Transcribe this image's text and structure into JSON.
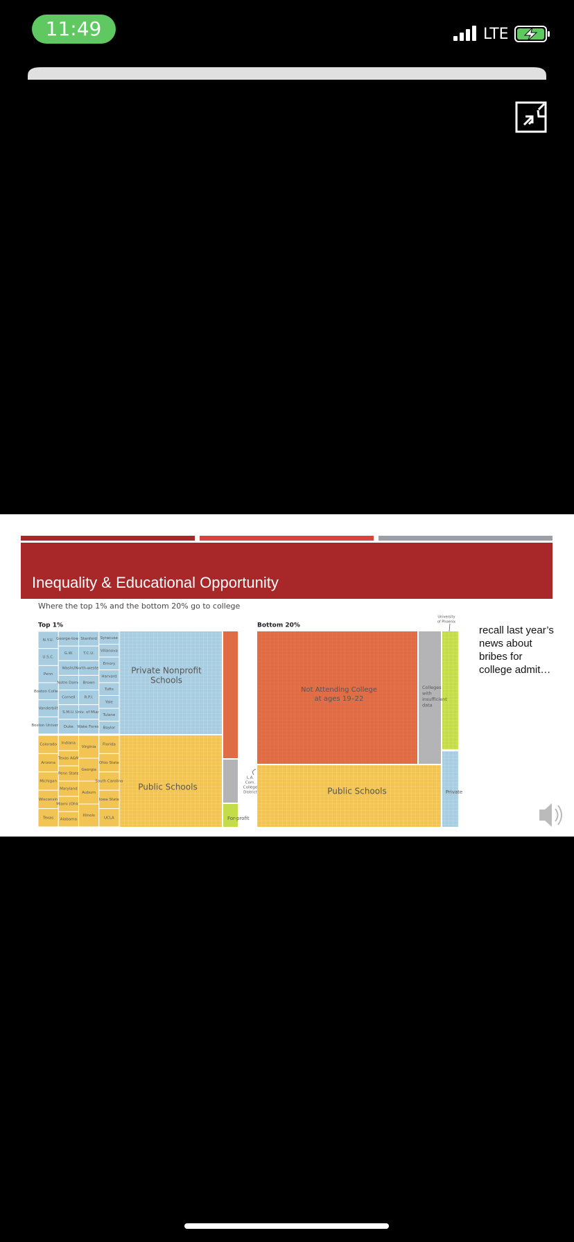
{
  "status": {
    "time": "11:49",
    "network": "LTE"
  },
  "slide": {
    "title": "Inequality & Educational Opportunity",
    "subtitle": "Where the top 1% and the bottom 20% go to college",
    "top_label": "Top 1%",
    "bottom_label": "Bottom 20%",
    "top_private_label": [
      "Private Nonprofit",
      "Schools"
    ],
    "top_public_label": "Public Schools",
    "top_private_schools": [
      [
        "N.Y.U.",
        "U.S.C.",
        "Penn",
        "Boston College",
        "Vanderbilt",
        "Boston University"
      ],
      [
        "George-town",
        "G.W.",
        "WashU",
        "Notre Dame",
        "Cornell",
        "S.M.U.",
        "Duke"
      ],
      [
        "Stanford",
        "T.C.U.",
        "North-western",
        "Brown",
        "R.P.I.",
        "Univ. of Miami",
        "Wake Forest"
      ],
      [
        "Syracuse",
        "Villanova",
        "Emory",
        "Harvard",
        "Tufts",
        "Yale",
        "Tulane",
        "Baylor"
      ]
    ],
    "top_public_schools": [
      [
        "Colorado",
        "Arizona",
        "Michigan",
        "Wisconsin",
        "Texas"
      ],
      [
        "Indiana",
        "Texas A&M",
        "Penn State",
        "Maryland",
        "Miami (Ohio)",
        "Alabama"
      ],
      [
        "Virginia",
        "Georgia",
        "Auburn",
        "Illinois"
      ],
      [
        "Florida",
        "Ohio State",
        "South Carolina",
        "Iowa State",
        "UCLA"
      ]
    ],
    "la_college": [
      "L.A.",
      "Com.",
      "College",
      "District"
    ],
    "for_profit": "For-profit",
    "not_attending": [
      "Not Attending College",
      "at ages 19–22"
    ],
    "insufficient": [
      "Colleges",
      "with",
      "insufficient",
      "data"
    ],
    "phoenix": [
      "University",
      "of Phoenix"
    ],
    "bottom_public_label": "Public Schools",
    "bottom_private_label": "Private",
    "note": [
      "recall last year’s",
      "news about",
      "bribes for",
      "college admit…"
    ]
  }
}
